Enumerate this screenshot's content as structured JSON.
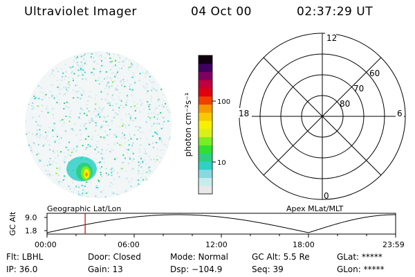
{
  "header": {
    "instrument": "Ultraviolet Imager",
    "date": "04 Oct 00",
    "time": "02:37:29 UT"
  },
  "colorbar": {
    "unit_label": "photon cm⁻²s⁻¹",
    "tick_100": "100",
    "tick_10": "10",
    "colors": [
      "#e8e8e8",
      "#c8ecec",
      "#8ad8e0",
      "#30d0c8",
      "#2cd080",
      "#30e030",
      "#78ee20",
      "#d8f018",
      "#f8f000",
      "#f8c800",
      "#f89800",
      "#f04000",
      "#e00010",
      "#c00040",
      "#800060",
      "#400060",
      "#100010"
    ]
  },
  "polar": {
    "label_12": "12",
    "label_6": "6",
    "label_18": "18",
    "label_0": "0",
    "label_60": "60",
    "label_70": "70",
    "label_80": "80"
  },
  "altitude_plot": {
    "left_title": "Geographic Lat/Lon",
    "right_title": "Apex MLat/MLT",
    "y_label": "GC Alt",
    "y_max": "9.0",
    "y_min": "1.8",
    "x_ticks": [
      "00:00",
      "06:00",
      "12:00",
      "18:00",
      "23:59"
    ],
    "current_time_hours": 2.625
  },
  "info": {
    "flt": "Flt: LBHL",
    "door": "Door: Closed",
    "mode": "Mode: Normal",
    "gc_alt": "GC Alt: 5.5 Re",
    "glat": "GLat: *****",
    "ip": "IP: 36.0",
    "gain": "Gain: 13",
    "dsp": "Dsp: −104.9",
    "seq": "Seq: 39",
    "glon": "GLon: *****"
  }
}
